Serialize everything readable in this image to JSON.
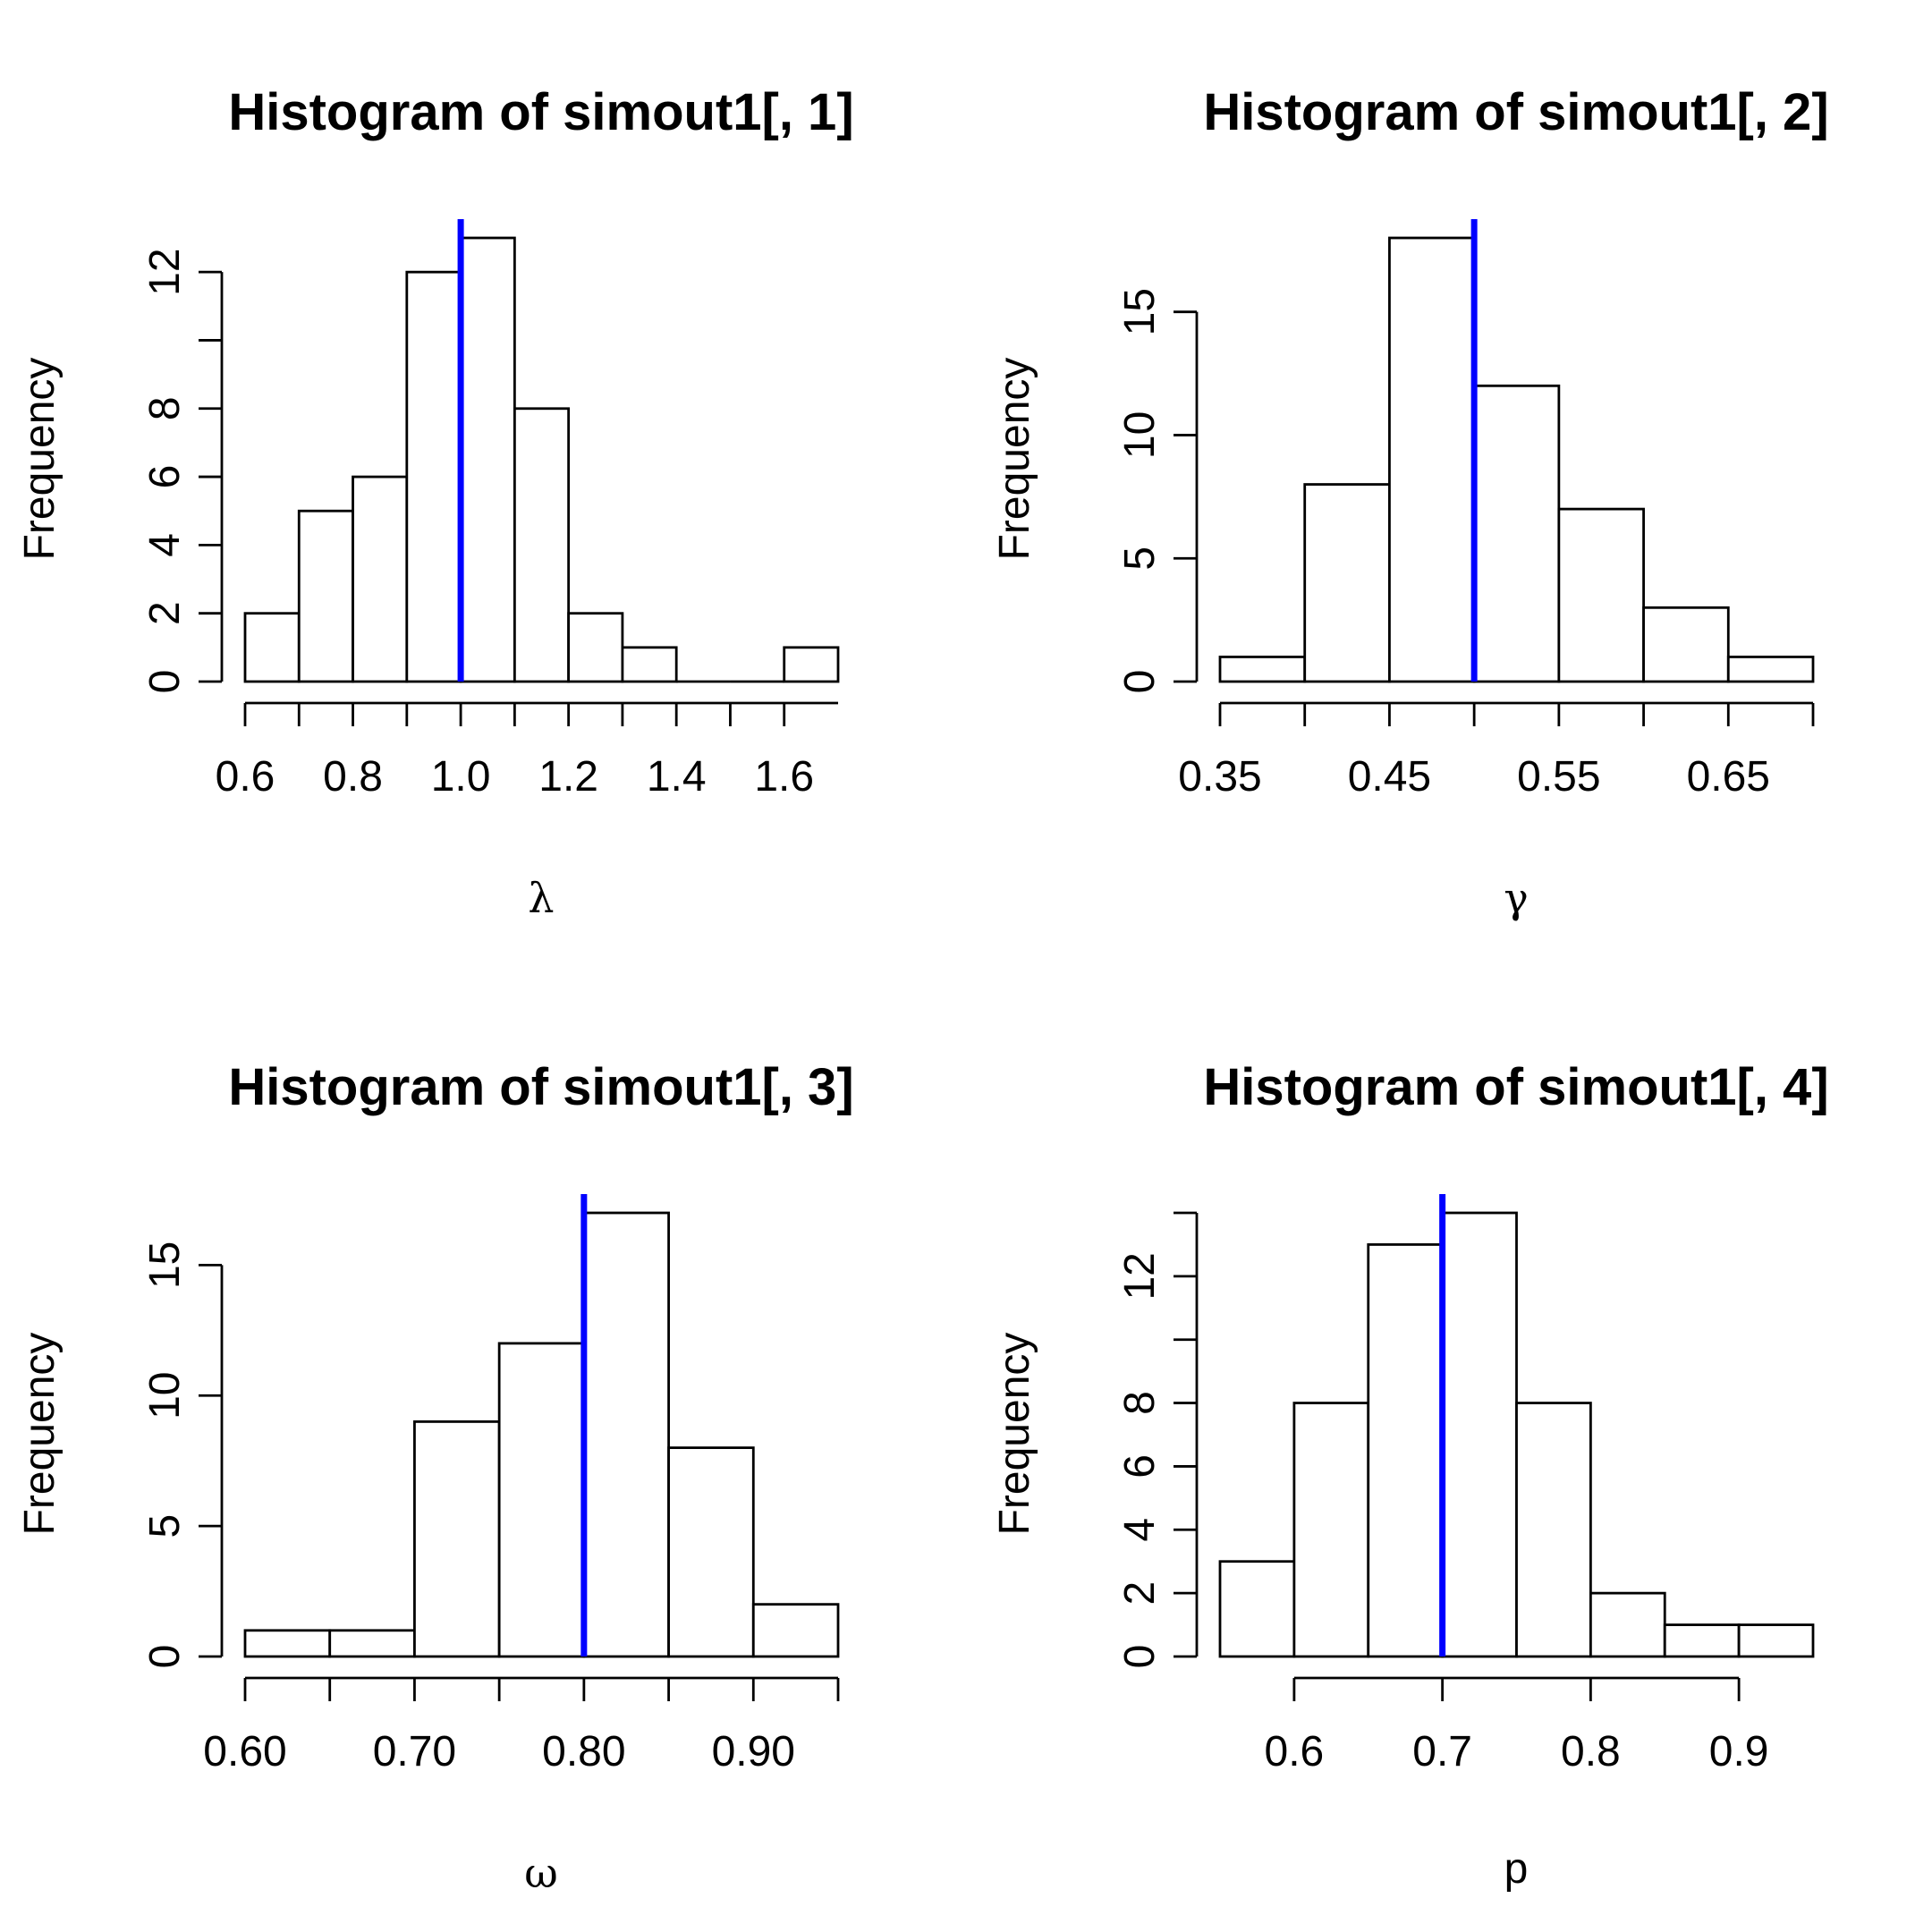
{
  "colors": {
    "reference_line": "#0000ff",
    "bar_fill": "#ffffff",
    "bar_stroke": "#000000"
  },
  "chart_data": [
    {
      "type": "bar",
      "subtype": "histogram",
      "title": "Histogram of simout1[, 1]",
      "xlabel": "λ",
      "ylabel": "Frequency",
      "bin_edges": [
        0.6,
        0.7,
        0.8,
        0.9,
        1.0,
        1.1,
        1.2,
        1.3,
        1.4,
        1.5,
        1.6,
        1.7
      ],
      "counts": [
        2,
        5,
        6,
        12,
        13,
        8,
        2,
        1,
        0,
        0,
        1
      ],
      "xlim": [
        0.6,
        1.7
      ],
      "ylim": [
        0,
        13
      ],
      "x_ticks": [
        0.6,
        0.8,
        1.0,
        1.2,
        1.4,
        1.6
      ],
      "x_tick_labels": [
        "0.6",
        "0.8",
        "1.0",
        "1.2",
        "1.4",
        "1.6"
      ],
      "x_ticks_minor": [
        0.7,
        0.9,
        1.1,
        1.3,
        1.5
      ],
      "y_ticks": [
        0,
        2,
        4,
        6,
        8,
        10,
        12
      ],
      "y_tick_labels": [
        "0",
        "2",
        "4",
        "6",
        "8",
        "",
        "12"
      ],
      "reference_line": {
        "x": 1.0
      }
    },
    {
      "type": "bar",
      "subtype": "histogram",
      "title": "Histogram of simout1[, 2]",
      "xlabel": "γ",
      "ylabel": "Frequency",
      "bin_edges": [
        0.35,
        0.4,
        0.45,
        0.5,
        0.55,
        0.6,
        0.65,
        0.7
      ],
      "counts": [
        1,
        8,
        18,
        12,
        7,
        3,
        1
      ],
      "xlim": [
        0.35,
        0.7
      ],
      "ylim": [
        0,
        18
      ],
      "x_ticks": [
        0.35,
        0.45,
        0.55,
        0.65
      ],
      "x_tick_labels": [
        "0.35",
        "0.45",
        "0.55",
        "0.65"
      ],
      "x_ticks_minor": [
        0.4,
        0.5,
        0.6,
        0.7
      ],
      "y_ticks": [
        0,
        5,
        10,
        15
      ],
      "y_tick_labels": [
        "0",
        "5",
        "10",
        "15"
      ],
      "reference_line": {
        "x": 0.5
      }
    },
    {
      "type": "bar",
      "subtype": "histogram",
      "title": "Histogram of simout1[, 3]",
      "xlabel": "ω",
      "ylabel": "Frequency",
      "bin_edges": [
        0.6,
        0.65,
        0.7,
        0.75,
        0.8,
        0.85,
        0.9,
        0.95
      ],
      "counts": [
        1,
        1,
        9,
        12,
        17,
        8,
        2
      ],
      "xlim": [
        0.6,
        0.95
      ],
      "ylim": [
        0,
        17
      ],
      "x_ticks": [
        0.6,
        0.7,
        0.8,
        0.9
      ],
      "x_tick_labels": [
        "0.60",
        "0.70",
        "0.80",
        "0.90"
      ],
      "x_ticks_minor": [
        0.65,
        0.75,
        0.85,
        0.95
      ],
      "y_ticks": [
        0,
        5,
        10,
        15
      ],
      "y_tick_labels": [
        "0",
        "5",
        "10",
        "15"
      ],
      "reference_line": {
        "x": 0.8
      }
    },
    {
      "type": "bar",
      "subtype": "histogram",
      "title": "Histogram of simout1[, 4]",
      "xlabel": "p",
      "ylabel": "Frequency",
      "bin_edges": [
        0.55,
        0.6,
        0.65,
        0.7,
        0.75,
        0.8,
        0.85,
        0.9,
        0.95
      ],
      "counts": [
        3,
        8,
        13,
        14,
        8,
        2,
        1,
        1
      ],
      "xlim": [
        0.55,
        0.95
      ],
      "ylim": [
        0,
        14
      ],
      "x_ticks": [
        0.6,
        0.7,
        0.8,
        0.9
      ],
      "x_tick_labels": [
        "0.6",
        "0.7",
        "0.8",
        "0.9"
      ],
      "x_ticks_minor": [],
      "x_axis_range": [
        0.6,
        0.9
      ],
      "y_ticks": [
        0,
        2,
        4,
        6,
        8,
        10,
        12,
        14
      ],
      "y_tick_labels": [
        "0",
        "2",
        "4",
        "6",
        "8",
        "",
        "12",
        ""
      ],
      "reference_line": {
        "x": 0.7
      }
    }
  ]
}
